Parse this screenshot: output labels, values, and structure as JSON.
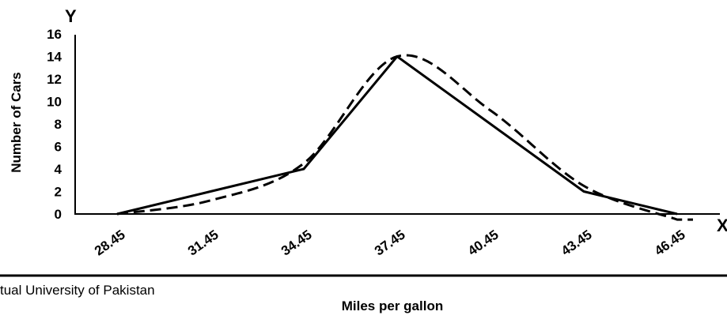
{
  "chart_data": {
    "type": "line",
    "x": [
      "28.45",
      "31.45",
      "34.45",
      "37.45",
      "40.45",
      "43.45",
      "46.45"
    ],
    "series": [
      {
        "values": [
          0,
          2,
          4,
          14,
          8,
          2,
          0
        ],
        "style": "solid"
      },
      {
        "values": [
          0,
          1.2,
          4.5,
          14,
          9.2,
          2.5,
          -0.5
        ],
        "style": "dashed",
        "smooth": true
      }
    ],
    "xlabel": "Miles per gallon",
    "ylabel": "Number of Cars",
    "y_axis_letter": "Y",
    "x_axis_letter": "X",
    "y_ticks": [
      "0",
      "2",
      "4",
      "6",
      "8",
      "10",
      "12",
      "14",
      "16"
    ],
    "ylim": [
      0,
      16
    ],
    "grid": false,
    "legend": "none"
  },
  "footer": {
    "text": "tual University of Pakistan"
  }
}
